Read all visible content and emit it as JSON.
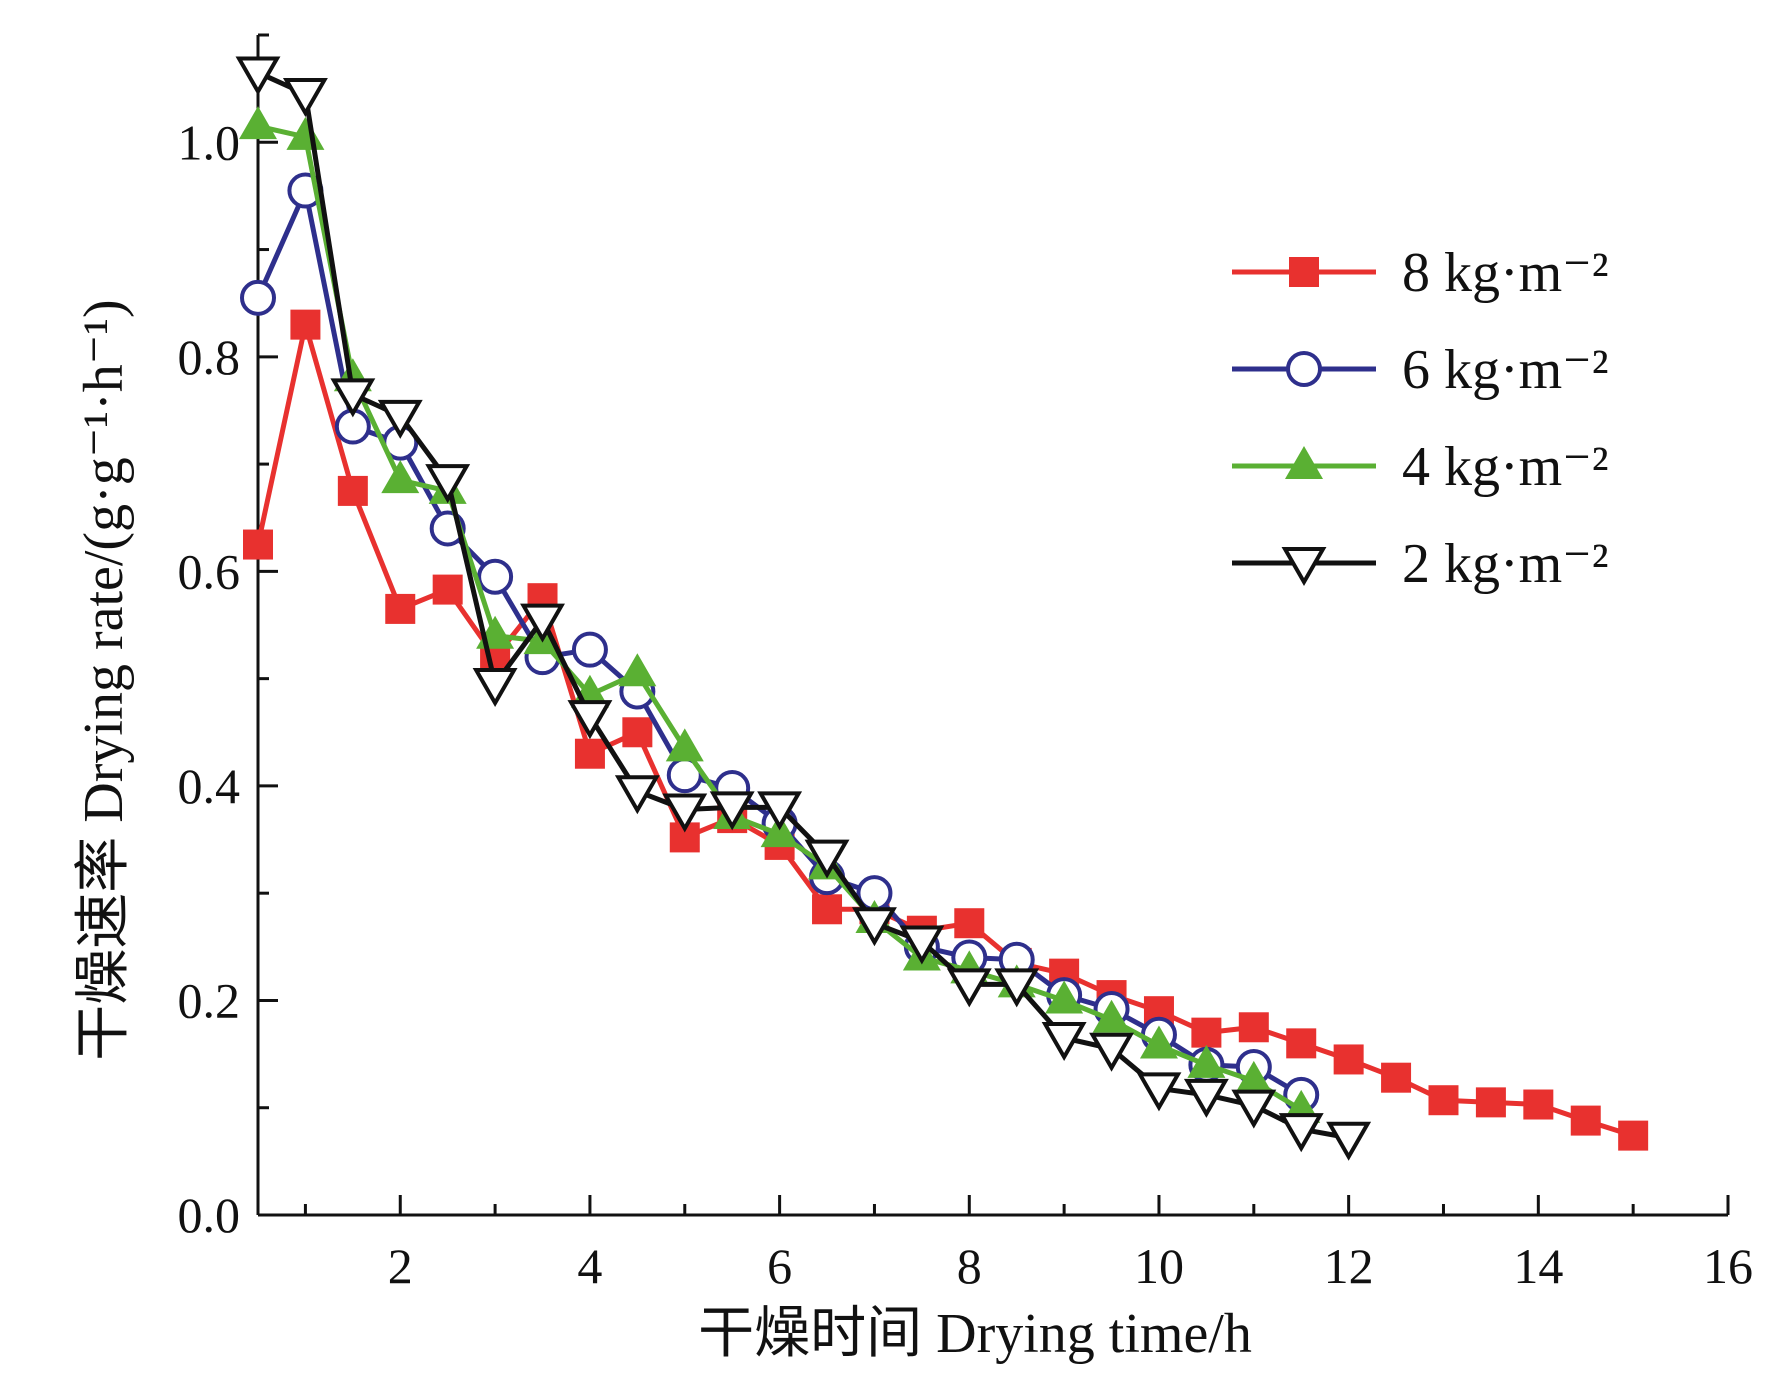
{
  "chart_data": {
    "type": "line",
    "title": "",
    "xlabel": "干燥时间 Drying time/h",
    "ylabel": "干燥速率 Drying rate/(g·g⁻¹·h⁻¹)",
    "xlim": [
      0.5,
      16
    ],
    "ylim": [
      0,
      1.1
    ],
    "xticks": [
      2,
      4,
      6,
      8,
      10,
      12,
      14,
      16
    ],
    "xtick_labels": [
      "2",
      "4",
      "6",
      "8",
      "10",
      "12",
      "14",
      "16"
    ],
    "yticks": [
      0.0,
      0.2,
      0.4,
      0.6,
      0.8,
      1.0
    ],
    "ytick_labels": [
      "0.0",
      "0.2",
      "0.4",
      "0.6",
      "0.8",
      "1.0"
    ],
    "grid": false,
    "legend": "right",
    "series": [
      {
        "name": "8 kg·m⁻²",
        "color": "#e8312f",
        "marker": "square-filled",
        "x": [
          0.5,
          1,
          1.5,
          2,
          2.5,
          3,
          3.5,
          4,
          4.5,
          5,
          5.5,
          6,
          6.5,
          7,
          7.5,
          8,
          8.5,
          9,
          9.5,
          10,
          10.5,
          11,
          11.5,
          12,
          12.5,
          13,
          13.5,
          14,
          14.5,
          15
        ],
        "y": [
          0.625,
          0.83,
          0.675,
          0.565,
          0.583,
          0.52,
          0.575,
          0.43,
          0.45,
          0.352,
          0.37,
          0.345,
          0.285,
          0.285,
          0.265,
          0.272,
          0.235,
          0.225,
          0.205,
          0.19,
          0.17,
          0.175,
          0.16,
          0.145,
          0.128,
          0.107,
          0.105,
          0.103,
          0.088,
          0.074
        ]
      },
      {
        "name": "6 kg·m⁻²",
        "color": "#2e2f8c",
        "marker": "circle-open",
        "x": [
          0.5,
          1,
          1.5,
          2,
          2.5,
          3,
          3.5,
          4,
          4.5,
          5,
          5.5,
          6,
          6.5,
          7,
          7.5,
          8,
          8.5,
          9,
          9.5,
          10,
          10.5,
          11,
          11.5
        ],
        "y": [
          0.855,
          0.955,
          0.735,
          0.72,
          0.64,
          0.595,
          0.52,
          0.527,
          0.488,
          0.41,
          0.398,
          0.365,
          0.315,
          0.3,
          0.25,
          0.24,
          0.238,
          0.205,
          0.192,
          0.168,
          0.14,
          0.138,
          0.112
        ]
      },
      {
        "name": "4 kg·m⁻²",
        "color": "#5ab033",
        "marker": "triangle-up-filled",
        "x": [
          0.5,
          1,
          1.5,
          2,
          2.5,
          3,
          3.5,
          4,
          4.5,
          5,
          5.5,
          6,
          6.5,
          7,
          7.5,
          8,
          8.5,
          9,
          9.5,
          10,
          10.5,
          11,
          11.5
        ],
        "y": [
          1.015,
          1.005,
          0.78,
          0.685,
          0.675,
          0.54,
          0.535,
          0.485,
          0.505,
          0.435,
          0.372,
          0.355,
          0.325,
          0.275,
          0.24,
          0.228,
          0.215,
          0.2,
          0.182,
          0.158,
          0.14,
          0.125,
          0.098
        ]
      },
      {
        "name": "2 kg·m⁻²",
        "color": "#111111",
        "marker": "triangle-down-open",
        "x": [
          0.5,
          1,
          1.5,
          2,
          2.5,
          3,
          3.5,
          4,
          4.5,
          5,
          5.5,
          6,
          6.5,
          7,
          7.5,
          8,
          8.5,
          9,
          9.5,
          10,
          10.5,
          11,
          11.5,
          12
        ],
        "y": [
          1.065,
          1.045,
          0.765,
          0.745,
          0.685,
          0.495,
          0.555,
          0.465,
          0.395,
          0.378,
          0.38,
          0.38,
          0.335,
          0.272,
          0.255,
          0.215,
          0.215,
          0.165,
          0.155,
          0.118,
          0.112,
          0.102,
          0.08,
          0.072
        ]
      }
    ]
  }
}
